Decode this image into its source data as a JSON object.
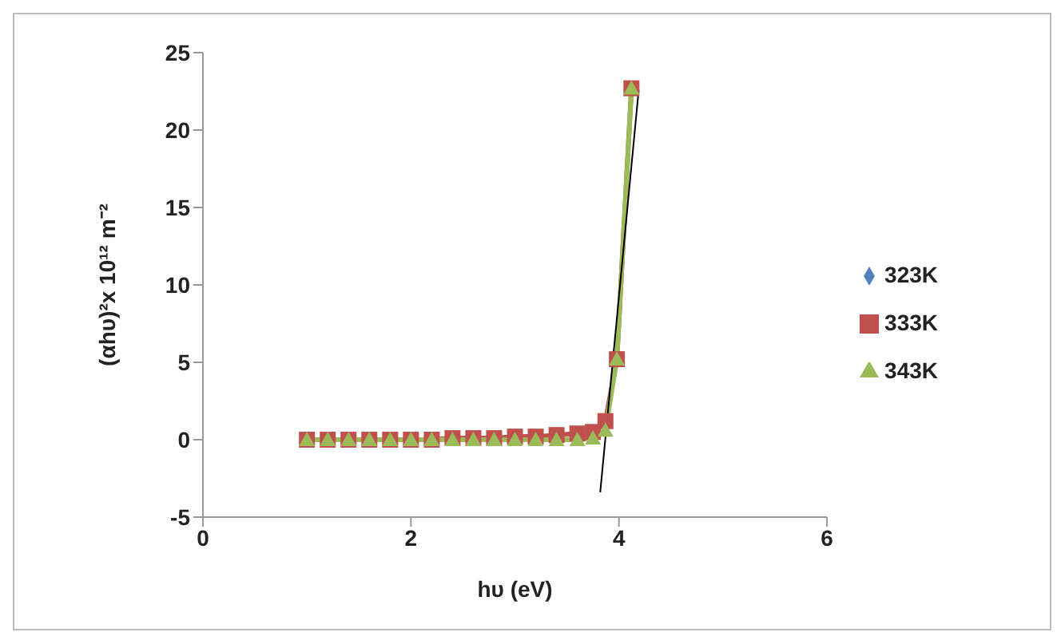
{
  "chart_data": {
    "type": "line",
    "xlabel": "hυ (eV)",
    "ylabel": "(αhυ)²x 10¹² m⁻²",
    "xlim": [
      0,
      6
    ],
    "xticks": [
      0,
      2,
      4,
      6
    ],
    "ylim": [
      -5,
      25
    ],
    "yticks": [
      -5,
      0,
      5,
      10,
      15,
      20,
      25
    ],
    "grid": false,
    "legend": "right",
    "series": [
      {
        "name": "323K",
        "color": "#4f81bd",
        "marker": "diamond"
      },
      {
        "name": "333K",
        "color": "#c0504d",
        "marker": "square",
        "x": [
          1.0,
          1.2,
          1.4,
          1.6,
          1.8,
          2.0,
          2.2,
          2.4,
          2.6,
          2.8,
          3.0,
          3.2,
          3.4,
          3.6,
          3.75,
          3.87,
          3.98,
          4.12
        ],
        "values": [
          0,
          0,
          0,
          0,
          0,
          0,
          0,
          0.1,
          0.1,
          0.1,
          0.2,
          0.2,
          0.3,
          0.4,
          0.5,
          1.2,
          5.2,
          22.7
        ]
      },
      {
        "name": "343K",
        "color": "#9bbb59",
        "marker": "triangle",
        "x": [
          1.0,
          1.2,
          1.4,
          1.6,
          1.8,
          2.0,
          2.2,
          2.4,
          2.6,
          2.8,
          3.0,
          3.2,
          3.4,
          3.6,
          3.75,
          3.87,
          3.98,
          4.12
        ],
        "values": [
          0,
          0,
          0,
          0,
          0,
          0,
          0,
          0,
          0,
          0,
          0,
          0,
          0,
          0,
          0.1,
          0.6,
          5.2,
          22.7
        ]
      },
      {
        "type": "line",
        "color": "#000000",
        "marker": "none",
        "x": [
          3.82,
          4.19
        ],
        "values": [
          -3.4,
          22.6
        ]
      }
    ]
  }
}
